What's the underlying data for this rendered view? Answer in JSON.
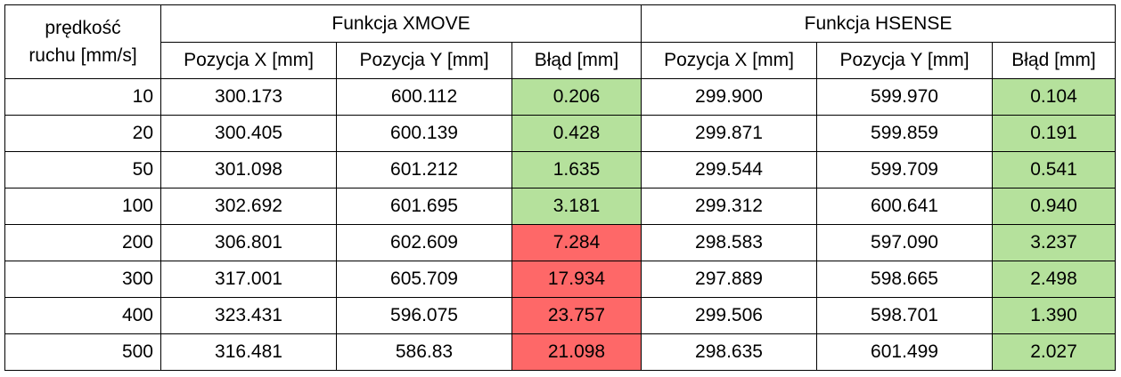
{
  "header": {
    "speed_label_line1": "prędkość",
    "speed_label_line2": "ruchu [mm/s]",
    "group_xmove": "Funkcja XMOVE",
    "group_hsense": "Funkcja HSENSE",
    "col_x": "Pozycja X [mm]",
    "col_y": "Pozycja Y [mm]",
    "col_err": "Błąd [mm]"
  },
  "colors": {
    "ok": "#b5e19c",
    "bad": "#fe6868"
  },
  "rows": [
    {
      "speed": "10",
      "xmove": {
        "x": "300.173",
        "y": "600.112",
        "err": "0.206",
        "status": "ok"
      },
      "hsense": {
        "x": "299.900",
        "y": "599.970",
        "err": "0.104",
        "status": "ok"
      }
    },
    {
      "speed": "20",
      "xmove": {
        "x": "300.405",
        "y": "600.139",
        "err": "0.428",
        "status": "ok"
      },
      "hsense": {
        "x": "299.871",
        "y": "599.859",
        "err": "0.191",
        "status": "ok"
      }
    },
    {
      "speed": "50",
      "xmove": {
        "x": "301.098",
        "y": "601.212",
        "err": "1.635",
        "status": "ok"
      },
      "hsense": {
        "x": "299.544",
        "y": "599.709",
        "err": "0.541",
        "status": "ok"
      }
    },
    {
      "speed": "100",
      "xmove": {
        "x": "302.692",
        "y": "601.695",
        "err": "3.181",
        "status": "ok"
      },
      "hsense": {
        "x": "299.312",
        "y": "600.641",
        "err": "0.940",
        "status": "ok"
      }
    },
    {
      "speed": "200",
      "xmove": {
        "x": "306.801",
        "y": "602.609",
        "err": "7.284",
        "status": "bad"
      },
      "hsense": {
        "x": "298.583",
        "y": "597.090",
        "err": "3.237",
        "status": "ok"
      }
    },
    {
      "speed": "300",
      "xmove": {
        "x": "317.001",
        "y": "605.709",
        "err": "17.934",
        "status": "bad"
      },
      "hsense": {
        "x": "297.889",
        "y": "598.665",
        "err": "2.498",
        "status": "ok"
      }
    },
    {
      "speed": "400",
      "xmove": {
        "x": "323.431",
        "y": "596.075",
        "err": "23.757",
        "status": "bad"
      },
      "hsense": {
        "x": "299.506",
        "y": "598.701",
        "err": "1.390",
        "status": "ok"
      }
    },
    {
      "speed": "500",
      "xmove": {
        "x": "316.481",
        "y": "586.83",
        "err": "21.098",
        "status": "bad"
      },
      "hsense": {
        "x": "298.635",
        "y": "601.499",
        "err": "2.027",
        "status": "ok"
      }
    }
  ]
}
